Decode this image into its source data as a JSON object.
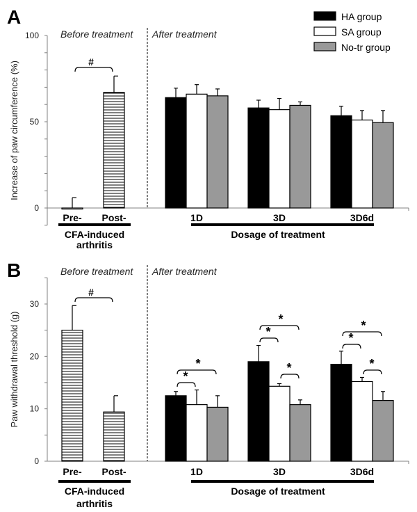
{
  "legend": [
    {
      "name": "HA group",
      "color": "#000000"
    },
    {
      "name": "SA group",
      "color": "#ffffff"
    },
    {
      "name": "No-tr group",
      "color": "#999999"
    }
  ],
  "chart_data": [
    {
      "type": "bar",
      "panel": "A",
      "ylabel": "Increase of paw circumference (%)",
      "ylim": [
        -10,
        100
      ],
      "yticks": [
        0,
        50,
        100
      ],
      "section_labels": [
        "Before treatment",
        "After treatment"
      ],
      "before": {
        "categories": [
          "Pre-",
          "Post-"
        ],
        "values": [
          0,
          67
        ],
        "errors": [
          6,
          9.5
        ],
        "group_label": [
          "CFA-induced",
          "arthritis"
        ]
      },
      "after": {
        "categories": [
          "1D",
          "3D",
          "3D6d"
        ],
        "series": [
          {
            "name": "HA group",
            "values": [
              64,
              58,
              53.5
            ],
            "errors": [
              5.5,
              4.5,
              5.5
            ]
          },
          {
            "name": "SA group",
            "values": [
              66,
              57,
              51
            ],
            "errors": [
              5.5,
              6.5,
              5.5
            ]
          },
          {
            "name": "No-tr group",
            "values": [
              65,
              59.5,
              49.5
            ],
            "errors": [
              4,
              2,
              7
            ]
          }
        ],
        "group_label": "Dosage of treatment"
      },
      "annotations": [
        {
          "category": "before",
          "from": 0,
          "to": 1,
          "label": "#"
        }
      ]
    },
    {
      "type": "bar",
      "panel": "B",
      "ylabel": "Paw withdrawal threshold (g)",
      "ylim": [
        0,
        35
      ],
      "yticks": [
        0,
        10,
        20,
        30
      ],
      "section_labels": [
        "Before treatment",
        "After treatment"
      ],
      "before": {
        "categories": [
          "Pre-",
          "Post-"
        ],
        "values": [
          25,
          9.4
        ],
        "errors": [
          4.7,
          3.1
        ],
        "group_label": [
          "CFA-induced",
          "arthritis"
        ]
      },
      "after": {
        "categories": [
          "1D",
          "3D",
          "3D6d"
        ],
        "series": [
          {
            "name": "HA group",
            "values": [
              12.5,
              19,
              18.5
            ],
            "errors": [
              0.8,
              3.1,
              2.5
            ]
          },
          {
            "name": "SA group",
            "values": [
              10.8,
              14.3,
              15.2
            ],
            "errors": [
              2.8,
              0.5,
              0.8
            ]
          },
          {
            "name": "No-tr group",
            "values": [
              10.3,
              10.8,
              11.6
            ],
            "errors": [
              2.2,
              0.9,
              1.7
            ]
          }
        ],
        "group_label": "Dosage of treatment"
      },
      "annotations": [
        {
          "category": "before",
          "from": 0,
          "to": 1,
          "label": "#"
        },
        {
          "category": "1D",
          "from": 0,
          "to": 1,
          "label": "*"
        },
        {
          "category": "1D",
          "from": 0,
          "to": 2,
          "label": "*"
        },
        {
          "category": "3D",
          "from": 0,
          "to": 1,
          "label": "*"
        },
        {
          "category": "3D",
          "from": 0,
          "to": 2,
          "label": "*"
        },
        {
          "category": "3D",
          "from": 1,
          "to": 2,
          "label": "*"
        },
        {
          "category": "3D6d",
          "from": 0,
          "to": 1,
          "label": "*"
        },
        {
          "category": "3D6d",
          "from": 0,
          "to": 2,
          "label": "*"
        },
        {
          "category": "3D6d",
          "from": 1,
          "to": 2,
          "label": "*"
        }
      ]
    }
  ]
}
